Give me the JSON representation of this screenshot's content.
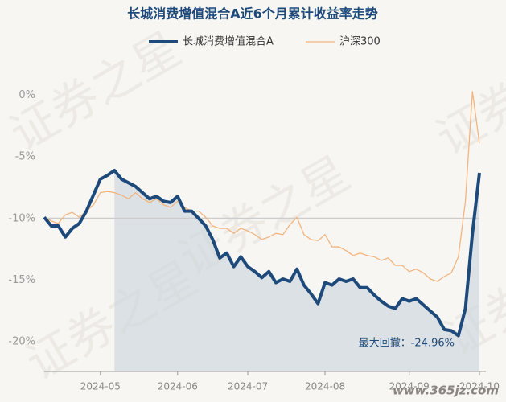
{
  "chart_data": {
    "type": "line",
    "title": "长城消费增值混合A近6个月累计收益率走势",
    "watermark": "证券之星",
    "site": "www.365jz.com",
    "annotation": "最大回撤：-24.96%",
    "categories": [
      null,
      null,
      null,
      null,
      null,
      null,
      null,
      null,
      "2024-05",
      null,
      null,
      null,
      null,
      null,
      null,
      null,
      null,
      null,
      null,
      "2024-06",
      null,
      null,
      null,
      null,
      null,
      null,
      null,
      null,
      null,
      "2024-07",
      null,
      null,
      null,
      null,
      null,
      null,
      null,
      null,
      null,
      null,
      "2024-08",
      null,
      null,
      null,
      null,
      null,
      null,
      null,
      null,
      null,
      null,
      null,
      "2024-09",
      null,
      null,
      null,
      null,
      null,
      null,
      null,
      null,
      null,
      "2024-10"
    ],
    "series": [
      {
        "name": "长城消费增值混合A",
        "color": "#1d4a7a",
        "values": [
          -9.9,
          -10.6,
          -10.6,
          -11.5,
          -10.8,
          -10.4,
          -9.4,
          -8.1,
          -6.8,
          -6.5,
          -6.1,
          -6.8,
          -7.1,
          -7.4,
          -7.9,
          -8.4,
          -8.2,
          -8.6,
          -8.7,
          -8.2,
          -9.4,
          -9.4,
          -10.0,
          -10.6,
          -11.7,
          -13.2,
          -12.8,
          -13.9,
          -13.1,
          -13.9,
          -14.3,
          -14.8,
          -14.3,
          -15.2,
          -14.9,
          -15.1,
          -14.1,
          -15.4,
          -16.1,
          -16.9,
          -15.2,
          -15.4,
          -14.9,
          -15.1,
          -14.9,
          -15.6,
          -15.6,
          -16.2,
          -16.7,
          -17.1,
          -17.3,
          -16.5,
          -16.7,
          -16.5,
          -17.0,
          -17.5,
          -18.0,
          -19.0,
          -19.1,
          -19.5,
          -17.3,
          -11.2,
          -6.3
        ]
      },
      {
        "name": "沪深300",
        "color": "#f2b47e",
        "values": [
          -9.9,
          -10.2,
          -10.4,
          -9.7,
          -9.5,
          -9.9,
          -9.4,
          -8.9,
          -7.9,
          -7.8,
          -7.9,
          -8.1,
          -8.4,
          -7.9,
          -8.4,
          -8.7,
          -8.4,
          -8.9,
          -9.1,
          -8.6,
          -9.1,
          -9.4,
          -9.4,
          -9.9,
          -10.6,
          -10.8,
          -10.8,
          -11.2,
          -10.8,
          -11.0,
          -11.3,
          -11.7,
          -11.5,
          -11.2,
          -11.3,
          -10.5,
          -9.9,
          -11.3,
          -11.7,
          -11.8,
          -11.3,
          -12.3,
          -12.3,
          -12.6,
          -13.0,
          -12.8,
          -13.0,
          -13.1,
          -13.4,
          -13.2,
          -13.8,
          -13.8,
          -14.3,
          -14.1,
          -14.4,
          -14.9,
          -15.1,
          -14.7,
          -14.4,
          -13.1,
          -8.6,
          0.3,
          -3.9
        ]
      }
    ],
    "ylim": [
      -22.4,
      1.2
    ],
    "yticks": [
      {
        "value": 0,
        "label": "0%"
      },
      {
        "value": -5,
        "label": "-5%"
      },
      {
        "value": -10,
        "label": "-10%"
      },
      {
        "value": -15,
        "label": "-15%"
      },
      {
        "value": -20,
        "label": "-20%"
      }
    ],
    "hline": -10,
    "grid": false
  }
}
